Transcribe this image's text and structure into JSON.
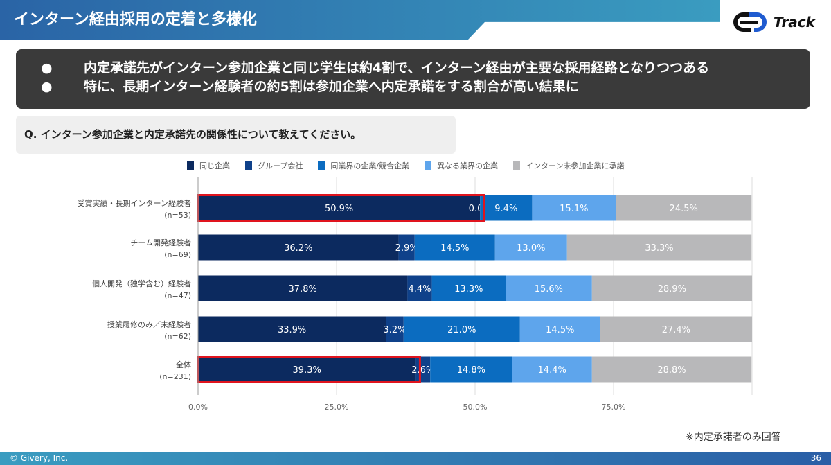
{
  "header": {
    "title": "インターン経由採用の定着と多様化",
    "logo_text": "Track"
  },
  "summary": [
    "内定承諾先がインターン参加企業と同じ学生は約4割で、インターン経由が主要な採用経路となりつつある",
    "特に、長期インターン経験者の約5割は参加企業へ内定承諾をする割合が高い結果に"
  ],
  "question": "Q. インターン参加企業と内定承諾先の関係性について教えてください。",
  "note": "※内定承諾者のみ回答",
  "footer": {
    "copyright": "© Givery, Inc.",
    "page": "36"
  },
  "chart_data": {
    "type": "bar",
    "orientation": "horizontal",
    "stacked": true,
    "categories": [
      [
        "受賞実績・長期インターン経験者",
        "(n=53)"
      ],
      [
        "チーム開発経験者",
        "(n=69)"
      ],
      [
        "個人開発（独学含む）経験者",
        "(n=47)"
      ],
      [
        "授業履修のみ／未経験者",
        "(n=62)"
      ],
      [
        "全体",
        "(n=231)"
      ]
    ],
    "series": [
      {
        "name": "同じ企業",
        "color": "#0c2a5f",
        "values": [
          50.9,
          36.2,
          37.8,
          33.9,
          39.3
        ]
      },
      {
        "name": "グループ会社",
        "color": "#0f418a",
        "values": [
          0.0,
          2.9,
          4.4,
          3.2,
          2.6
        ]
      },
      {
        "name": "同業界の企業/競合企業",
        "color": "#0b6cc0",
        "values": [
          9.4,
          14.5,
          13.3,
          21.0,
          14.8
        ]
      },
      {
        "name": "異なる業界の企業",
        "color": "#5ea5ec",
        "values": [
          15.1,
          13.0,
          15.6,
          14.5,
          14.4
        ]
      },
      {
        "name": "インターン未参加企業に承諾",
        "color": "#b8b8ba",
        "values": [
          24.5,
          33.3,
          28.9,
          27.4,
          28.8
        ]
      }
    ],
    "xticks": [
      "0.0%",
      "25.0%",
      "50.0%",
      "75.0%"
    ],
    "xlim": [
      0,
      100
    ],
    "grid": true,
    "legend": "top",
    "highlighted_categories": [
      0,
      4
    ],
    "highlight_color": "#e0141e"
  }
}
